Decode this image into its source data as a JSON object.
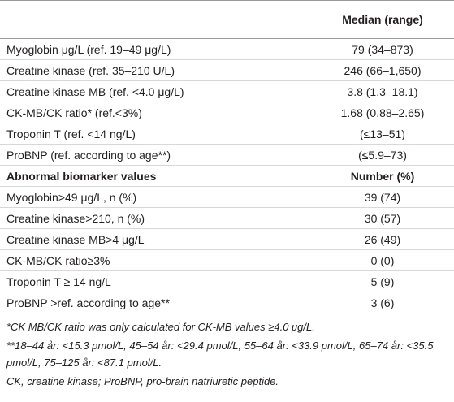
{
  "table": {
    "header": {
      "value_column": "Median (range)"
    },
    "rows": [
      [
        "Myoglobin μg/L (ref. 19–49 μg/L)",
        "79 (34–873)"
      ],
      [
        "Creatine kinase (ref. 35–210 U/L)",
        "246 (66–1,650)"
      ],
      [
        "Creatine kinase MB (ref. <4.0 μg/L)",
        "3.8 (1.3–18.1)"
      ],
      [
        "CK-MB/CK ratio* (ref.<3%)",
        "1.68 (0.88–2.65)"
      ],
      [
        "Troponin T (ref. <14 ng/L)",
        "(≤13–51)"
      ],
      [
        "ProBNP (ref. according to age**)",
        "(≤5.9–73)"
      ]
    ],
    "section": {
      "label": "Abnormal biomarker values",
      "value_column": "Number (%)"
    },
    "section_rows": [
      [
        "Myoglobin>49 μg/L, n (%)",
        "39 (74)"
      ],
      [
        "Creatine kinase>210, n (%)",
        "30 (57)"
      ],
      [
        "Creatine kinase MB>4 μg/L",
        "26 (49)"
      ],
      [
        "CK-MB/CK ratio≥3%",
        "0 (0)"
      ],
      [
        "Troponin T ≥ 14 ng/L",
        "5 (9)"
      ],
      [
        "ProBNP >ref. according to age**",
        "3 (6)"
      ]
    ],
    "footnotes": [
      "*CK MB/CK ratio was only calculated for CK-MB values ≥4.0 μg/L.",
      "**18–44 år: <15.3 pmol/L, 45–54 år: <29.4 pmol/L, 55–64 år: <33.9 pmol/L, 65–74 år: <35.5 pmol/L, 75–125 år: <87.1 pmol/L.",
      "CK, creatine kinase; ProBNP, pro-brain natriuretic peptide."
    ]
  }
}
